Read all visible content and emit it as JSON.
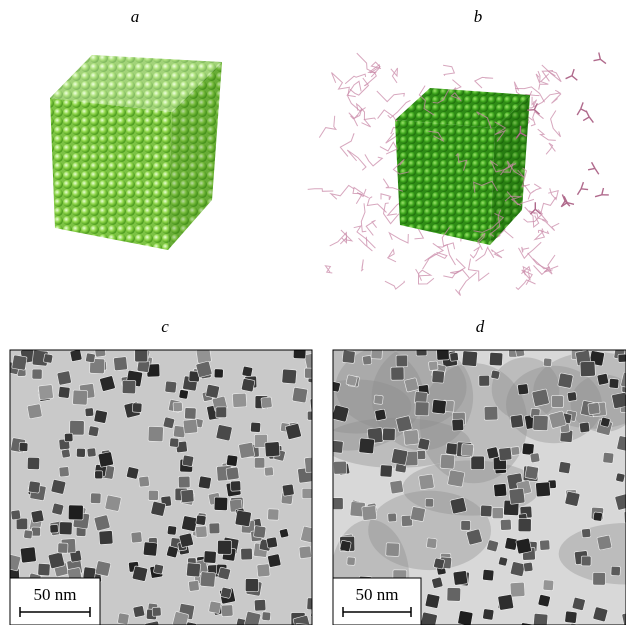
{
  "panels": [
    {
      "label": "a"
    },
    {
      "label": "b"
    },
    {
      "label": "c",
      "scale_bar": "50 nm"
    },
    {
      "label": "d",
      "scale_bar": "50 nm"
    }
  ]
}
